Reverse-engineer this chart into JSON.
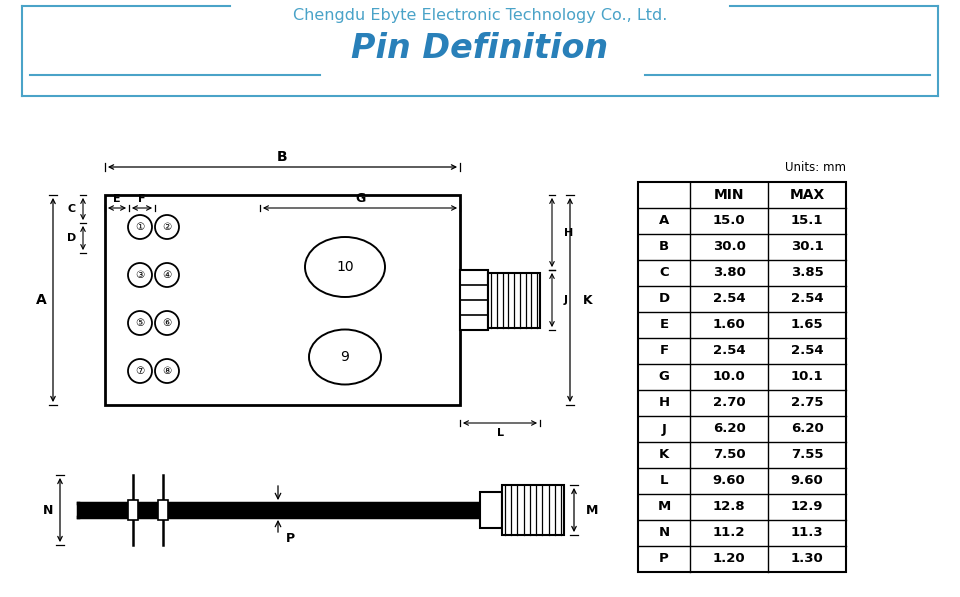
{
  "title_company": "Chengdu Ebyte Electronic Technology Co., Ltd.",
  "title_main": "Pin Definition",
  "company_color": "#4aa3c8",
  "title_color": "#2980b9",
  "bg_color": "#ffffff",
  "table_data": {
    "headers": [
      "",
      "MIN",
      "MAX"
    ],
    "rows": [
      [
        "A",
        "15.0",
        "15.1"
      ],
      [
        "B",
        "30.0",
        "30.1"
      ],
      [
        "C",
        "3.80",
        "3.85"
      ],
      [
        "D",
        "2.54",
        "2.54"
      ],
      [
        "E",
        "1.60",
        "1.65"
      ],
      [
        "F",
        "2.54",
        "2.54"
      ],
      [
        "G",
        "10.0",
        "10.1"
      ],
      [
        "H",
        "2.70",
        "2.75"
      ],
      [
        "J",
        "6.20",
        "6.20"
      ],
      [
        "K",
        "7.50",
        "7.55"
      ],
      [
        "L",
        "9.60",
        "9.60"
      ],
      [
        "M",
        "12.8",
        "12.9"
      ],
      [
        "N",
        "11.2",
        "11.3"
      ],
      [
        "P",
        "1.20",
        "1.30"
      ]
    ]
  },
  "dim_color": "#000000",
  "module_color": "#000000",
  "line_color": "#000000"
}
